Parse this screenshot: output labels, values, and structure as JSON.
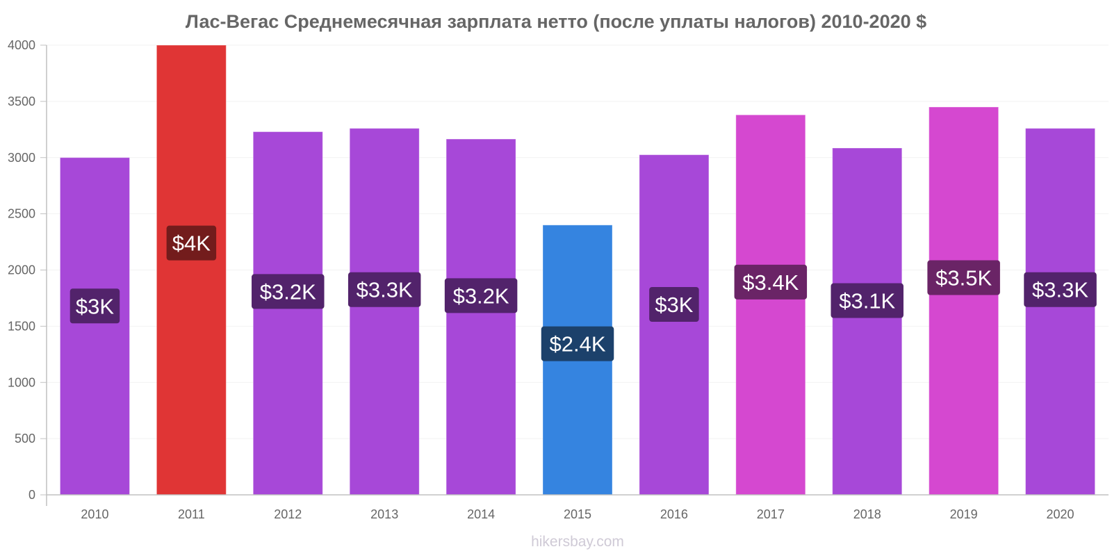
{
  "chart_data": {
    "type": "bar",
    "title": "Лас-Вегас Среднемесячная зарплата нетто (после уплаты налогов) 2010-2020 $",
    "xlabel": "",
    "ylabel": "",
    "ylim": [
      0,
      4000
    ],
    "yticks": [
      "0",
      "500",
      "1000",
      "1500",
      "2000",
      "2500",
      "3000",
      "3500",
      "4000"
    ],
    "grid": true,
    "categories": [
      "2010",
      "2011",
      "2012",
      "2013",
      "2014",
      "2015",
      "2016",
      "2017",
      "2018",
      "2019",
      "2020"
    ],
    "values": [
      3000,
      4000,
      3230,
      3260,
      3165,
      2400,
      3025,
      3380,
      3085,
      3450,
      3260
    ],
    "data_labels": [
      "$3K",
      "$4K",
      "$3.2K",
      "$3.3K",
      "$3.2K",
      "$2.4K",
      "$3K",
      "$3.4K",
      "$3.1K",
      "$3.5K",
      "$3.3K"
    ],
    "bar_colors": [
      "#a748d8",
      "#e03535",
      "#a748d8",
      "#a748d8",
      "#a748d8",
      "#3584e0",
      "#a748d8",
      "#d548d0",
      "#a748d8",
      "#d548d0",
      "#a748d8"
    ],
    "label_colors": [
      "#52236b",
      "#731c1c",
      "#52236b",
      "#52236b",
      "#52236b",
      "#1c416b",
      "#52236b",
      "#6a2466",
      "#52236b",
      "#6a2466",
      "#52236b"
    ]
  },
  "footer": "hikersbay.com"
}
